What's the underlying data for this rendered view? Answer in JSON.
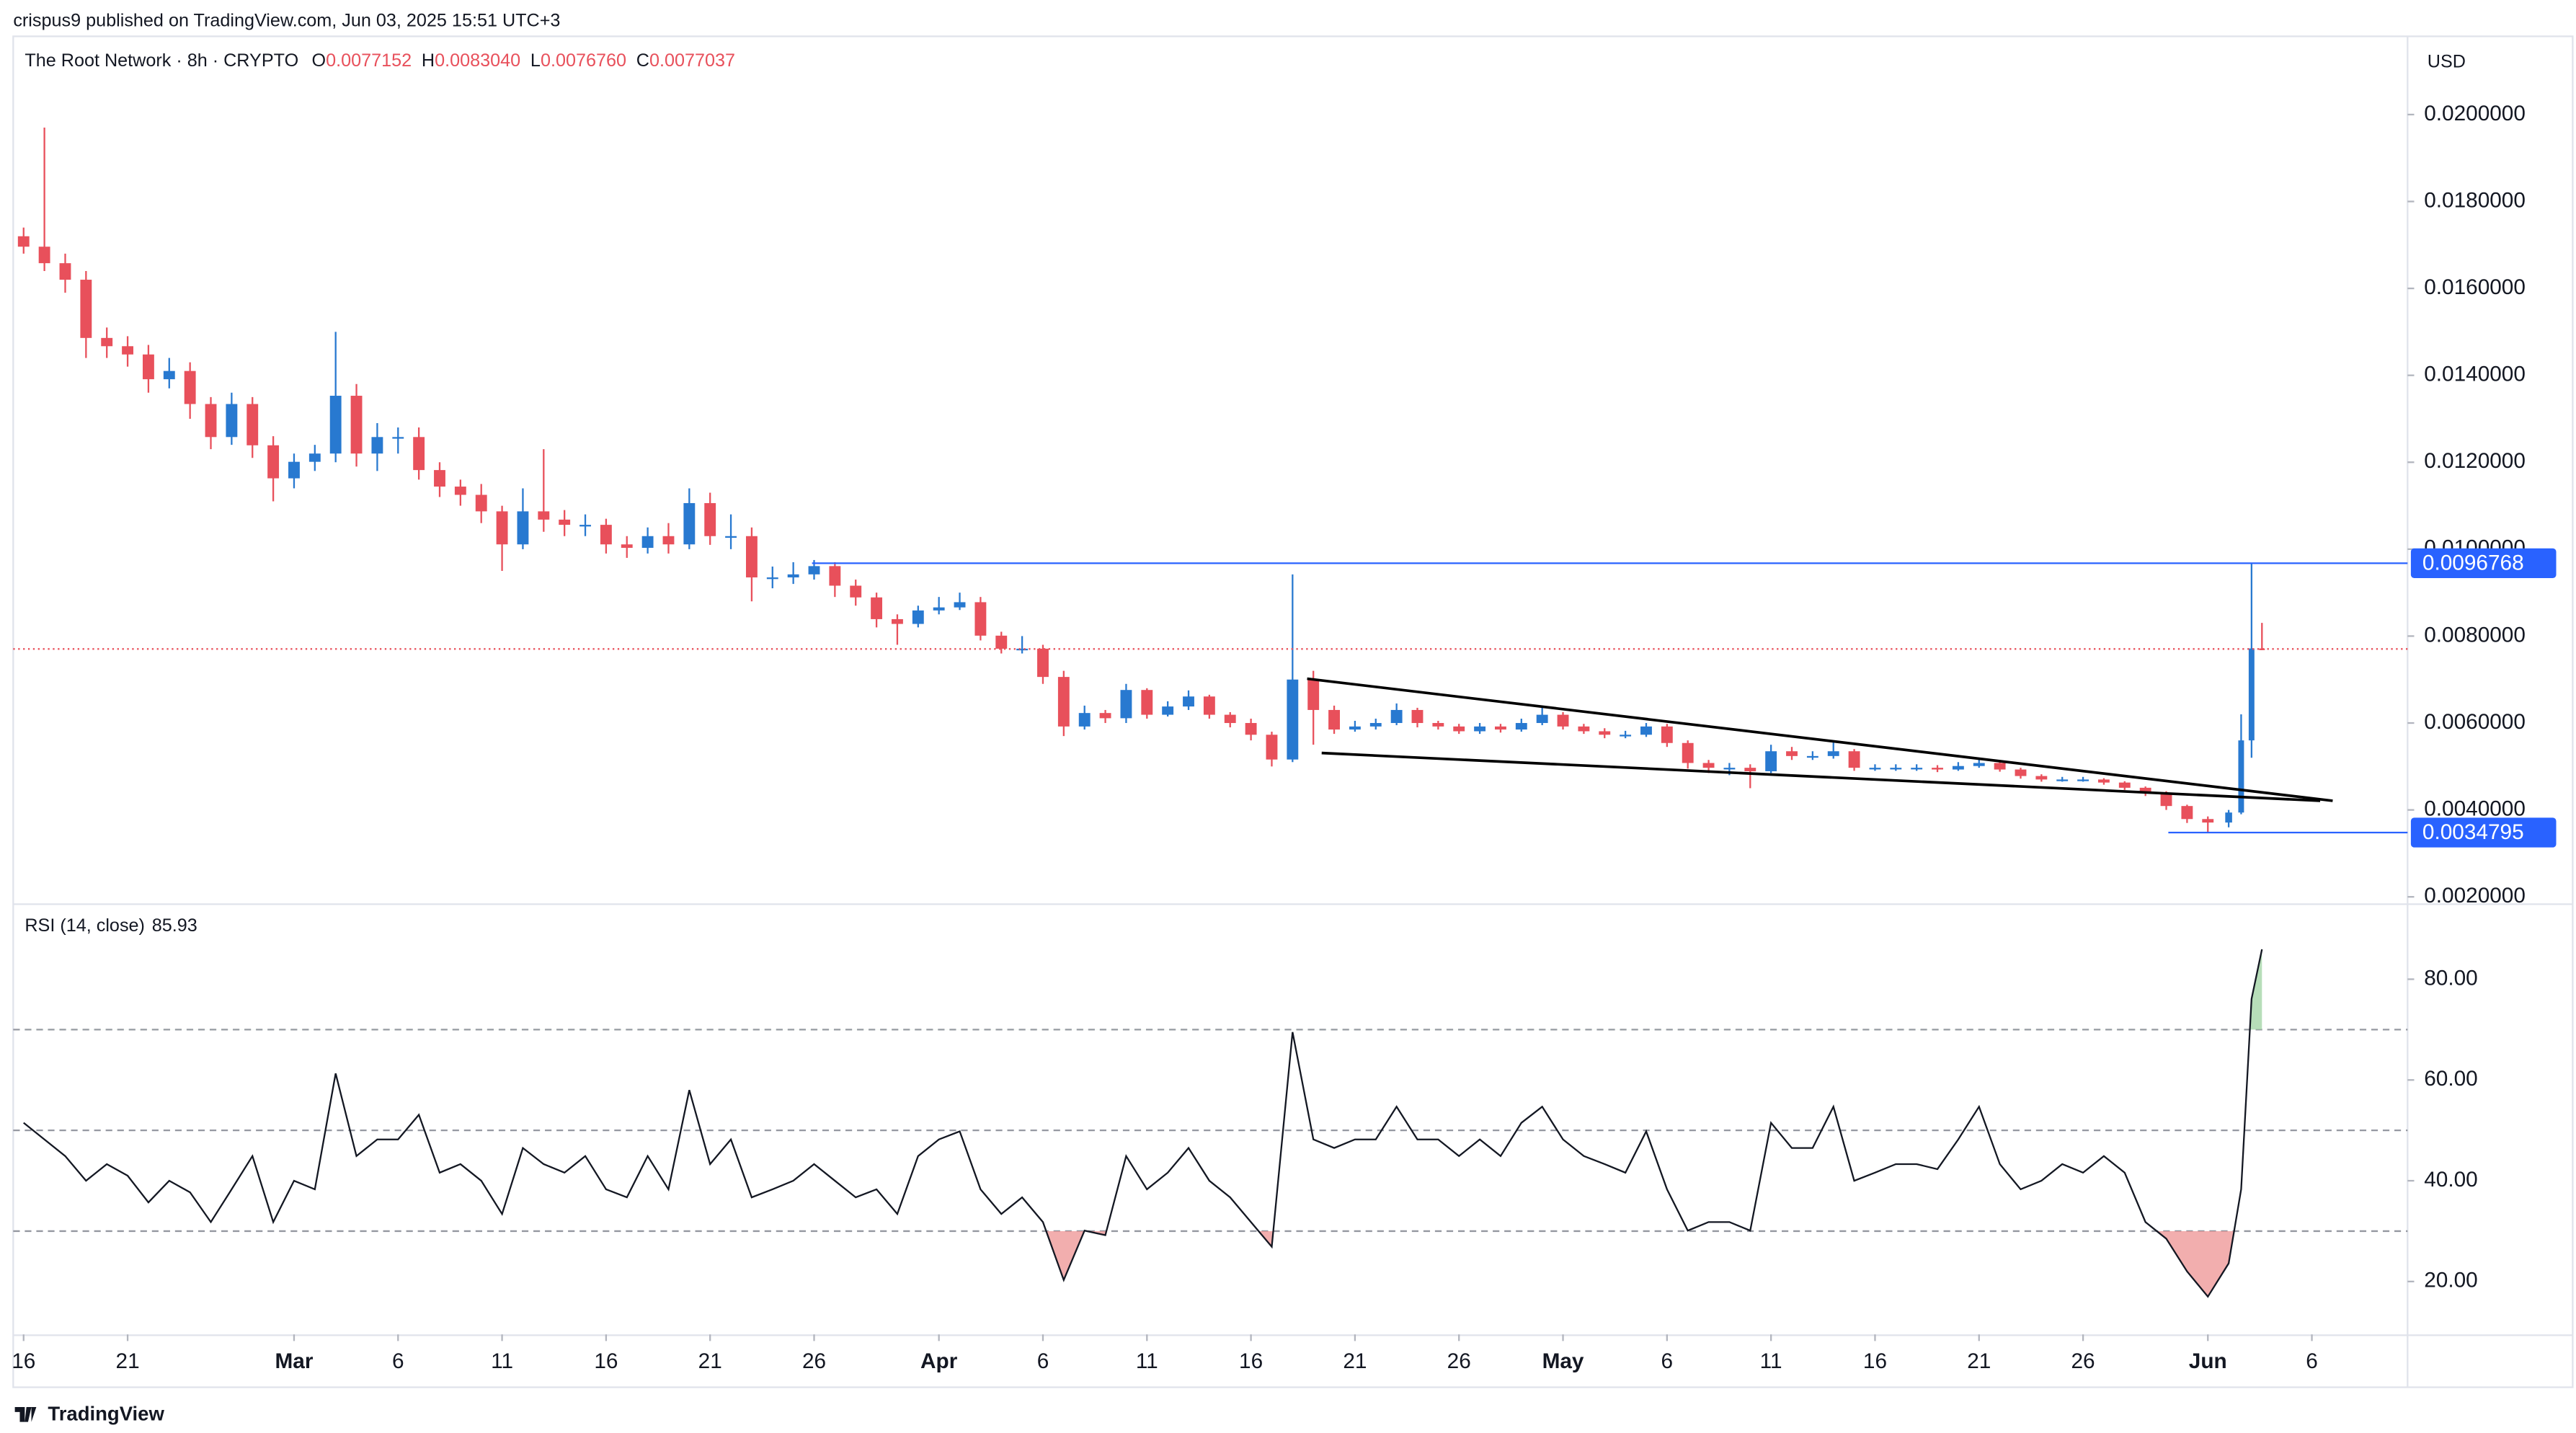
{
  "header": {
    "publisher": "crispus9 published on TradingView.com, Jun 03, 2025 15:51 UTC+3",
    "symbol": "The Root Network · 8h · CRYPTO",
    "ohlc": [
      {
        "key": "O",
        "value": "0.0077152"
      },
      {
        "key": "H",
        "value": "0.0083040"
      },
      {
        "key": "L",
        "value": "0.0076760"
      },
      {
        "key": "C",
        "value": "0.0077037"
      }
    ],
    "currency": "USD"
  },
  "footer": {
    "brand": "TradingView"
  },
  "chart_data": [
    {
      "type": "candlestick",
      "up_color": "#2879d0",
      "down_color": "#e8505b",
      "x": [
        16,
        17,
        18,
        19,
        20,
        21,
        22,
        23,
        24,
        25,
        26,
        27,
        28,
        29,
        30,
        31,
        32,
        33,
        34,
        35,
        36,
        37,
        38,
        39,
        40,
        41,
        42,
        43,
        44,
        45,
        46,
        47,
        48,
        49,
        50,
        51,
        52,
        53,
        54,
        55,
        56,
        57,
        58,
        59,
        60,
        61,
        62,
        63,
        64,
        65,
        66,
        67,
        68,
        69,
        70,
        71,
        72,
        73,
        74,
        75,
        76,
        77,
        78,
        79,
        80,
        81,
        82,
        83,
        84,
        85,
        86,
        87,
        88,
        89,
        90,
        91,
        92,
        93,
        94,
        95,
        96,
        97,
        98,
        99,
        100,
        101,
        102,
        103,
        104,
        105,
        106,
        107,
        108,
        109,
        110,
        111,
        112,
        113,
        114,
        115,
        116,
        117,
        118,
        119,
        120,
        121,
        122,
        122.6,
        123.1,
        123.6
      ],
      "open": [
        0.0172,
        0.01696,
        0.01658,
        0.0162,
        0.01486,
        0.01467,
        0.01448,
        0.01391,
        0.0141,
        0.01334,
        0.01258,
        0.01334,
        0.01239,
        0.01163,
        0.01201,
        0.0122,
        0.01353,
        0.0122,
        0.01258,
        0.01258,
        0.01182,
        0.01144,
        0.01125,
        0.01087,
        0.01011,
        0.01087,
        0.01068,
        0.01056,
        0.01056,
        0.01011,
        0.01003,
        0.0103,
        0.01011,
        0.01106,
        0.0103,
        0.0103,
        0.00935,
        0.00935,
        0.00942,
        0.00961,
        0.00916,
        0.00889,
        0.00839,
        0.00828,
        0.00859,
        0.00866,
        0.00878,
        0.00801,
        0.00771,
        0.00771,
        0.00706,
        0.00592,
        0.00623,
        0.00611,
        0.00676,
        0.00619,
        0.00638,
        0.00661,
        0.00619,
        0.006,
        0.00573,
        0.00516,
        0.007,
        0.0063,
        0.00585,
        0.00592,
        0.006,
        0.0063,
        0.006,
        0.00592,
        0.00581,
        0.00592,
        0.00585,
        0.006,
        0.00619,
        0.00592,
        0.00581,
        0.00573,
        0.00573,
        0.00592,
        0.00554,
        0.00508,
        0.00497,
        0.00497,
        0.00489,
        0.00535,
        0.00524,
        0.00524,
        0.00535,
        0.00497,
        0.00497,
        0.00497,
        0.00497,
        0.00493,
        0.00501,
        0.00508,
        0.00493,
        0.00478,
        0.0047,
        0.0047,
        0.0047,
        0.00463,
        0.00451,
        0.0044,
        0.00409,
        0.00379,
        0.00371,
        0.00394,
        0.0056,
        0.0077152
      ],
      "high": [
        0.0174,
        0.0197,
        0.0168,
        0.0164,
        0.0151,
        0.0149,
        0.0147,
        0.0144,
        0.0143,
        0.0135,
        0.0136,
        0.0135,
        0.0126,
        0.0122,
        0.0124,
        0.015,
        0.0138,
        0.0129,
        0.0128,
        0.0128,
        0.012,
        0.0116,
        0.0115,
        0.011,
        0.0114,
        0.0123,
        0.0109,
        0.0108,
        0.0107,
        0.0103,
        0.0105,
        0.0106,
        0.0114,
        0.0113,
        0.0108,
        0.0105,
        0.0096,
        0.0097,
        0.00975,
        0.0097,
        0.0093,
        0.009,
        0.0085,
        0.0087,
        0.0089,
        0.009,
        0.0089,
        0.0081,
        0.008,
        0.0078,
        0.0072,
        0.0064,
        0.0063,
        0.0069,
        0.0068,
        0.0065,
        0.00675,
        0.00665,
        0.00625,
        0.0061,
        0.0058,
        0.00942,
        0.0072,
        0.0064,
        0.00605,
        0.0061,
        0.00645,
        0.00635,
        0.00605,
        0.00598,
        0.006,
        0.00598,
        0.0061,
        0.00635,
        0.00625,
        0.00598,
        0.00588,
        0.00582,
        0.006,
        0.00598,
        0.0056,
        0.00515,
        0.00508,
        0.00505,
        0.0055,
        0.00545,
        0.00535,
        0.00555,
        0.0054,
        0.00505,
        0.00505,
        0.00505,
        0.00503,
        0.0051,
        0.0052,
        0.00512,
        0.00497,
        0.00482,
        0.00476,
        0.00476,
        0.00473,
        0.00466,
        0.00454,
        0.00443,
        0.00412,
        0.00385,
        0.004,
        0.0062,
        0.0096768,
        0.008304
      ],
      "low": [
        0.0168,
        0.0164,
        0.0159,
        0.0144,
        0.0144,
        0.0142,
        0.0136,
        0.0137,
        0.013,
        0.0123,
        0.0124,
        0.0121,
        0.0111,
        0.0114,
        0.0118,
        0.012,
        0.0119,
        0.0118,
        0.0122,
        0.0116,
        0.0112,
        0.011,
        0.0106,
        0.0095,
        0.01,
        0.0104,
        0.0103,
        0.0103,
        0.0099,
        0.0098,
        0.0099,
        0.0099,
        0.01,
        0.0101,
        0.01,
        0.0088,
        0.0091,
        0.0092,
        0.0093,
        0.0089,
        0.0087,
        0.0082,
        0.0078,
        0.0082,
        0.0085,
        0.0086,
        0.0079,
        0.0076,
        0.0076,
        0.0069,
        0.0057,
        0.00585,
        0.006,
        0.006,
        0.0061,
        0.00615,
        0.0063,
        0.0061,
        0.0059,
        0.0056,
        0.005,
        0.0051,
        0.0055,
        0.00575,
        0.0058,
        0.00585,
        0.00595,
        0.0059,
        0.00585,
        0.00575,
        0.00575,
        0.00578,
        0.0058,
        0.00595,
        0.00585,
        0.00575,
        0.00565,
        0.00565,
        0.00568,
        0.00545,
        0.00495,
        0.00485,
        0.0048,
        0.0045,
        0.00485,
        0.00515,
        0.00515,
        0.00518,
        0.0049,
        0.0049,
        0.0049,
        0.0049,
        0.00487,
        0.0049,
        0.00497,
        0.00488,
        0.00472,
        0.00465,
        0.00465,
        0.00465,
        0.00458,
        0.00446,
        0.00432,
        0.004,
        0.0037,
        0.0034795,
        0.0036,
        0.0039,
        0.0052,
        0.007676
      ],
      "close": [
        0.01696,
        0.01658,
        0.0162,
        0.01486,
        0.01467,
        0.01448,
        0.01391,
        0.0141,
        0.01334,
        0.01258,
        0.01334,
        0.01239,
        0.01163,
        0.01201,
        0.0122,
        0.01353,
        0.0122,
        0.01258,
        0.01258,
        0.01182,
        0.01144,
        0.01125,
        0.01087,
        0.01011,
        0.01087,
        0.01068,
        0.01056,
        0.01056,
        0.01011,
        0.01003,
        0.0103,
        0.01011,
        0.01106,
        0.0103,
        0.0103,
        0.00935,
        0.00935,
        0.00942,
        0.00961,
        0.00916,
        0.00889,
        0.00839,
        0.00828,
        0.00859,
        0.00866,
        0.00878,
        0.00801,
        0.00771,
        0.00771,
        0.00706,
        0.00592,
        0.00623,
        0.00611,
        0.00676,
        0.00619,
        0.00638,
        0.00661,
        0.00619,
        0.006,
        0.00573,
        0.00516,
        0.007,
        0.0063,
        0.00585,
        0.00592,
        0.006,
        0.0063,
        0.006,
        0.00592,
        0.00581,
        0.00592,
        0.00585,
        0.006,
        0.00619,
        0.00592,
        0.00581,
        0.00573,
        0.00573,
        0.00592,
        0.00554,
        0.00508,
        0.00497,
        0.00497,
        0.00489,
        0.00535,
        0.00524,
        0.00524,
        0.00535,
        0.00497,
        0.00497,
        0.00497,
        0.00497,
        0.00493,
        0.00501,
        0.00508,
        0.00493,
        0.00478,
        0.0047,
        0.0047,
        0.0047,
        0.00463,
        0.00451,
        0.0044,
        0.00409,
        0.00379,
        0.00371,
        0.00394,
        0.0056,
        0.0077152,
        0.0077037
      ],
      "xlim": [
        15.5,
        130.6
      ],
      "ylim": [
        0.00185,
        0.0218
      ],
      "yticks": [
        {
          "value": 0.002,
          "label": "0.0020000"
        },
        {
          "value": 0.004,
          "label": "0.0040000"
        },
        {
          "value": 0.006,
          "label": "0.0060000"
        },
        {
          "value": 0.008,
          "label": "0.0080000"
        },
        {
          "value": 0.01,
          "label": "0.0100000"
        },
        {
          "value": 0.012,
          "label": "0.0120000"
        },
        {
          "value": 0.014,
          "label": "0.0140000"
        },
        {
          "value": 0.016,
          "label": "0.0160000"
        },
        {
          "value": 0.018,
          "label": "0.0180000"
        },
        {
          "value": 0.02,
          "label": "0.0200000"
        }
      ],
      "hlines": [
        {
          "value": 0.0096768,
          "from": 53.9,
          "color": "#2962ff"
        },
        {
          "value": 0.0034795,
          "from": 119.1,
          "color": "#2962ff"
        }
      ],
      "trendlines": [
        {
          "x": [
            77.7,
            127
          ],
          "y": [
            0.00702,
            0.00421
          ]
        },
        {
          "x": [
            78.4,
            126.4
          ],
          "y": [
            0.00531,
            0.00421
          ]
        }
      ],
      "last_price_color": "#e8505b",
      "grid": false
    },
    {
      "type": "line",
      "title": "RSI (14, close)",
      "color": "#131722",
      "x": [
        16,
        17,
        18,
        19,
        20,
        21,
        22,
        23,
        24,
        25,
        26,
        27,
        28,
        29,
        30,
        31,
        32,
        33,
        34,
        35,
        36,
        37,
        38,
        39,
        40,
        41,
        42,
        43,
        44,
        45,
        46,
        47,
        48,
        49,
        50,
        51,
        52,
        53,
        54,
        55,
        56,
        57,
        58,
        59,
        60,
        61,
        62,
        63,
        64,
        65,
        66,
        67,
        68,
        69,
        70,
        71,
        72,
        73,
        74,
        75,
        76,
        77,
        78,
        79,
        80,
        81,
        82,
        83,
        84,
        85,
        86,
        87,
        88,
        89,
        90,
        91,
        92,
        93,
        94,
        95,
        96,
        97,
        98,
        99,
        100,
        101,
        102,
        103,
        104,
        105,
        106,
        107,
        108,
        109,
        110,
        111,
        112,
        113,
        114,
        115,
        116,
        117,
        118,
        119,
        120,
        121,
        122,
        122.6,
        123.1,
        123.6
      ],
      "values": [
        51.5,
        48.2,
        44.9,
        40,
        43.3,
        41,
        35.7,
        40,
        37.7,
        31.8,
        38.3,
        44.9,
        31.8,
        40,
        38.3,
        61.3,
        44.9,
        48.2,
        48.2,
        53.1,
        41.6,
        43.3,
        40,
        33.4,
        46.5,
        43.3,
        41.6,
        44.9,
        38.3,
        36.7,
        44.9,
        38.3,
        58,
        43.3,
        48.2,
        36.7,
        38.3,
        40,
        43.3,
        40,
        36.7,
        38.3,
        33.4,
        44.9,
        48.2,
        49.8,
        38.3,
        33.4,
        36.7,
        31.8,
        20.3,
        30.1,
        29.2,
        44.9,
        38.3,
        41.6,
        46.5,
        40,
        36.7,
        31.8,
        26.9,
        69.5,
        48.2,
        46.5,
        48.2,
        48.2,
        54.7,
        48.2,
        48.2,
        44.9,
        48.2,
        44.9,
        51.5,
        54.7,
        48.2,
        44.9,
        43.3,
        41.6,
        49.8,
        38.3,
        30.1,
        31.8,
        31.8,
        30.1,
        51.5,
        46.5,
        46.5,
        54.7,
        40,
        41.6,
        43.3,
        43.3,
        42.3,
        48.2,
        54.7,
        43.3,
        38.3,
        40,
        43.3,
        41.6,
        44.9,
        41.6,
        31.8,
        28.5,
        22,
        17,
        23.6,
        38.3,
        76.1,
        85.93
      ],
      "xlim": [
        15.5,
        130.6
      ],
      "ylim": [
        9.5,
        94.4
      ],
      "yticks": [
        {
          "value": 20,
          "label": "20.00"
        },
        {
          "value": 40,
          "label": "40.00"
        },
        {
          "value": 60,
          "label": "60.00"
        },
        {
          "value": 80,
          "label": "80.00"
        }
      ],
      "levels": [
        70,
        50,
        30
      ],
      "fill_above_color": "#a5d6a7",
      "fill_below_color": "#ef9a9a",
      "xticks": [
        {
          "value": 16,
          "label": "16"
        },
        {
          "value": 21,
          "label": "21"
        },
        {
          "value": 29,
          "label": "Mar"
        },
        {
          "value": 34,
          "label": "6"
        },
        {
          "value": 39,
          "label": "11"
        },
        {
          "value": 44,
          "label": "16"
        },
        {
          "value": 49,
          "label": "21"
        },
        {
          "value": 54,
          "label": "26"
        },
        {
          "value": 60,
          "label": "Apr"
        },
        {
          "value": 65,
          "label": "6"
        },
        {
          "value": 70,
          "label": "11"
        },
        {
          "value": 75,
          "label": "16"
        },
        {
          "value": 80,
          "label": "21"
        },
        {
          "value": 85,
          "label": "26"
        },
        {
          "value": 90,
          "label": "May"
        },
        {
          "value": 95,
          "label": "6"
        },
        {
          "value": 100,
          "label": "11"
        },
        {
          "value": 105,
          "label": "16"
        },
        {
          "value": 110,
          "label": "21"
        },
        {
          "value": 115,
          "label": "26"
        },
        {
          "value": 121,
          "label": "Jun"
        },
        {
          "value": 126,
          "label": "6"
        }
      ],
      "grid": false
    }
  ]
}
